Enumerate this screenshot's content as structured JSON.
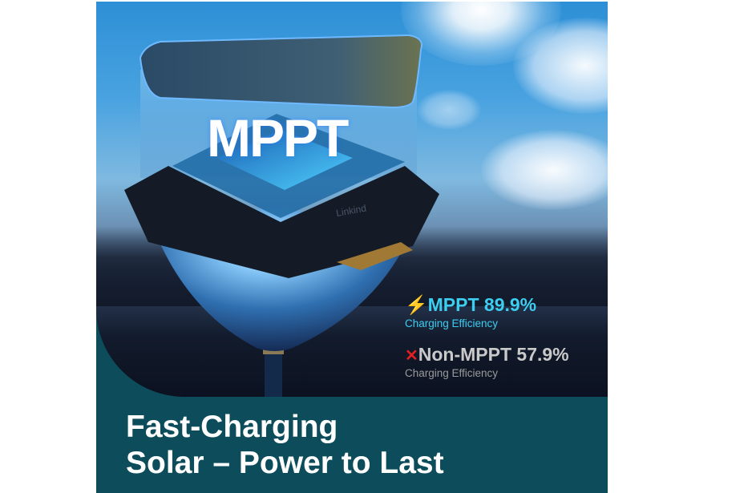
{
  "image": {
    "brand": "Linkind",
    "hero_label": "MPPT",
    "stats": [
      {
        "icon": "lightning-bolt-icon",
        "title": "MPPT 89.9%",
        "subtitle": "Charging Efficiency",
        "color": "#3dcdf0"
      },
      {
        "icon": "red-x-icon",
        "title": "Non-MPPT 57.9%",
        "subtitle": "Charging Efficiency",
        "color": "#c9c9c9"
      }
    ],
    "banner": {
      "line1": "Fast-Charging",
      "line2": "Solar – Power to Last",
      "color": "#0d4d5b"
    }
  }
}
